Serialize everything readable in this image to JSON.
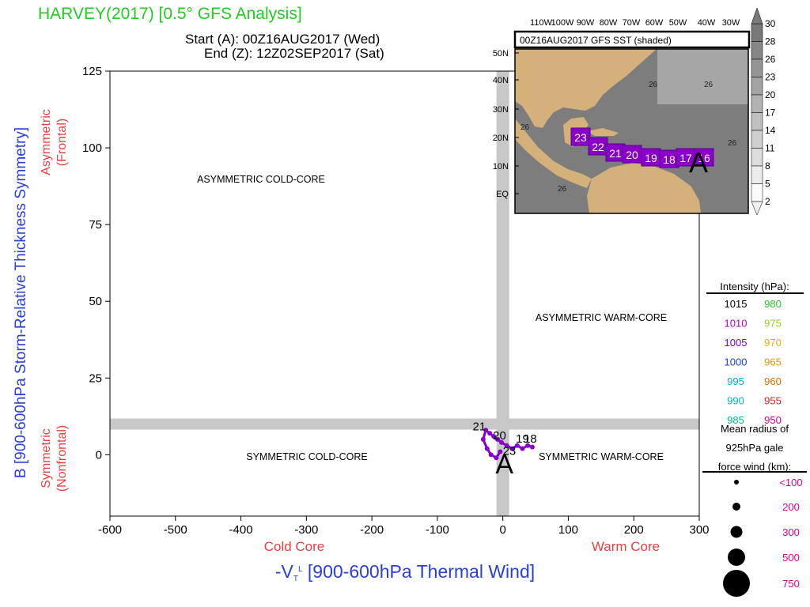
{
  "title": "HARVEY(2017) [0.5° GFS Analysis]",
  "start_label": "Start (A): 00Z16AUG2017 (Wed)",
  "end_label": "End (Z): 12Z02SEP2017 (Sat)",
  "chart_data": {
    "type": "scatter",
    "title": "HARVEY(2017) [0.5° GFS Analysis]",
    "xlabel": "-V_T^L [900-600hPa Thermal Wind]",
    "ylabel": "B [900-600hPa Storm-Relative Thickness Symmetry]",
    "xlim": [
      -600,
      300
    ],
    "ylim": [
      -20,
      125
    ],
    "xticks": [
      -600,
      -500,
      -400,
      -300,
      -200,
      -100,
      0,
      100,
      200,
      300
    ],
    "yticks": [
      0,
      25,
      50,
      75,
      100,
      125
    ],
    "x_side_labels": {
      "left": "Cold Core",
      "right": "Warm Core"
    },
    "y_side_labels": {
      "top": [
        "Asymmetric",
        "(Frontal)"
      ],
      "bottom": [
        "Symmetric",
        "(Nonfrontal)"
      ]
    },
    "quadrant_labels": {
      "asymmetric_cold": "ASYMMETRIC COLD-CORE",
      "asymmetric_warm": "ASYMMETRIC WARM-CORE",
      "symmetric_cold": "SYMMETRIC COLD-CORE",
      "symmetric_warm": "SYMMETRIC WARM-CORE"
    },
    "start_marker": "A",
    "track": {
      "points": [
        {
          "x": 45,
          "y": 2.5
        },
        {
          "x": 38,
          "y": 3
        },
        {
          "x": 30,
          "y": 2
        },
        {
          "x": 22,
          "y": 3
        },
        {
          "x": 14,
          "y": 2
        },
        {
          "x": 6,
          "y": 3
        },
        {
          "x": -2,
          "y": 4
        },
        {
          "x": -8,
          "y": 5
        },
        {
          "x": -14,
          "y": 6
        },
        {
          "x": -20,
          "y": 7
        },
        {
          "x": -26,
          "y": 8
        },
        {
          "x": -30,
          "y": 5
        },
        {
          "x": -24,
          "y": 2
        },
        {
          "x": -18,
          "y": 0
        },
        {
          "x": -10,
          "y": -1
        },
        {
          "x": -4,
          "y": 1
        }
      ],
      "day_labels": [
        {
          "text": "21",
          "x": -36,
          "y": 8
        },
        {
          "text": "20",
          "x": -5,
          "y": 5
        },
        {
          "text": "19",
          "x": 30,
          "y": 4
        },
        {
          "text": "18",
          "x": 42,
          "y": 4
        },
        {
          "text": "23",
          "x": 10,
          "y": 0
        }
      ]
    },
    "intensity_legend": {
      "title": "Intensity (hPa):",
      "left": [
        {
          "label": "1015",
          "color": "#000000"
        },
        {
          "label": "1010",
          "color": "#b000c8"
        },
        {
          "label": "1005",
          "color": "#7a00d8"
        },
        {
          "label": "1000",
          "color": "#1a40e0"
        },
        {
          "label": "995",
          "color": "#00aadd"
        },
        {
          "label": "990",
          "color": "#00b4b4"
        },
        {
          "label": "985",
          "color": "#00bb88"
        }
      ],
      "right": [
        {
          "label": "980",
          "color": "#22cc22"
        },
        {
          "label": "975",
          "color": "#99cc22"
        },
        {
          "label": "970",
          "color": "#e0b400"
        },
        {
          "label": "965",
          "color": "#e09600"
        },
        {
          "label": "960",
          "color": "#e06e00"
        },
        {
          "label": "955",
          "color": "#e02020"
        },
        {
          "label": "950",
          "color": "#e00090"
        }
      ]
    },
    "size_legend": {
      "title": [
        "Mean radius of",
        "925hPa gale",
        "force wind (km):"
      ],
      "items": [
        {
          "label": "<100",
          "size_rank": 1
        },
        {
          "label": "200",
          "size_rank": 2
        },
        {
          "label": "300",
          "size_rank": 3
        },
        {
          "label": "500",
          "size_rank": 4
        },
        {
          "label": "750",
          "size_rank": 5
        }
      ]
    },
    "inset_map": {
      "title": "00Z16AUG2017 GFS SST (shaded)",
      "lon_labels": [
        "110W",
        "100W",
        "90W",
        "80W",
        "70W",
        "60W",
        "50W",
        "40W",
        "30W"
      ],
      "lat_labels": [
        "50N",
        "40N",
        "30N",
        "20N",
        "10N",
        "EQ"
      ],
      "sst_contour_label": "26",
      "track_labels": [
        "23",
        "22",
        "21",
        "20",
        "19",
        "18",
        "17",
        "16"
      ],
      "colorbar_ticks": [
        "30",
        "28",
        "26",
        "23",
        "20",
        "17",
        "14",
        "11",
        "8",
        "5",
        "2"
      ]
    }
  }
}
